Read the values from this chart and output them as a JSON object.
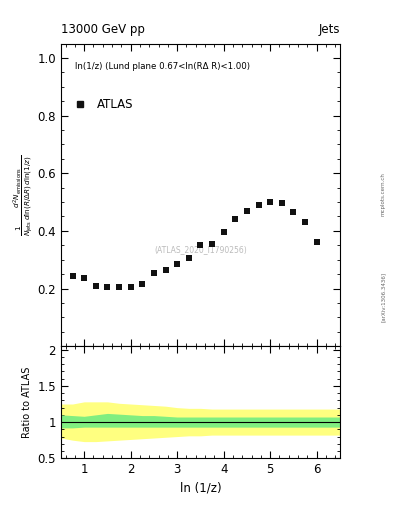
{
  "title_left": "13000 GeV pp",
  "title_right": "Jets",
  "annotation": "ln(1/z) (Lund plane 0.67<ln(RΔ R)<1.00)",
  "atlas_label": "ATLAS",
  "watermark": "(ATLAS_2020_I1790256)",
  "ylabel_ratio": "Ratio to ATLAS",
  "xlabel": "ln (1/z)",
  "xlim": [
    0.5,
    6.5
  ],
  "ylim_main": [
    0.0,
    1.05
  ],
  "ylim_ratio": [
    0.5,
    2.05
  ],
  "yticks_main": [
    0.2,
    0.4,
    0.6,
    0.8,
    1.0
  ],
  "yticks_ratio": [
    0.5,
    1.0,
    1.5,
    2.0
  ],
  "xticks": [
    1,
    2,
    3,
    4,
    5,
    6
  ],
  "data_x": [
    0.75,
    1.0,
    1.25,
    1.5,
    1.75,
    2.0,
    2.25,
    2.5,
    2.75,
    3.0,
    3.25,
    3.5,
    3.75,
    4.0,
    4.25,
    4.5,
    4.75,
    5.0,
    5.25,
    5.5,
    5.75,
    6.0
  ],
  "data_y": [
    0.245,
    0.235,
    0.21,
    0.205,
    0.205,
    0.205,
    0.215,
    0.255,
    0.265,
    0.285,
    0.305,
    0.35,
    0.355,
    0.395,
    0.44,
    0.47,
    0.49,
    0.5,
    0.495,
    0.465,
    0.43,
    0.36
  ],
  "marker_color": "#111111",
  "marker_size": 4.5,
  "ratio_x": [
    0.5,
    0.75,
    1.0,
    1.25,
    1.5,
    1.75,
    2.0,
    2.25,
    2.5,
    2.75,
    3.0,
    3.25,
    3.5,
    3.75,
    4.0,
    4.25,
    4.5,
    4.75,
    5.0,
    5.25,
    5.5,
    5.75,
    6.0,
    6.5
  ],
  "ratio_green_upper": [
    1.1,
    1.09,
    1.08,
    1.1,
    1.12,
    1.11,
    1.1,
    1.09,
    1.09,
    1.08,
    1.07,
    1.07,
    1.07,
    1.07,
    1.07,
    1.07,
    1.07,
    1.07,
    1.07,
    1.07,
    1.07,
    1.07,
    1.07,
    1.07
  ],
  "ratio_green_lower": [
    0.92,
    0.92,
    0.93,
    0.93,
    0.93,
    0.93,
    0.93,
    0.93,
    0.93,
    0.93,
    0.93,
    0.93,
    0.93,
    0.93,
    0.93,
    0.93,
    0.93,
    0.93,
    0.93,
    0.93,
    0.93,
    0.93,
    0.93,
    0.93
  ],
  "ratio_yellow_upper": [
    1.25,
    1.25,
    1.28,
    1.28,
    1.28,
    1.26,
    1.25,
    1.24,
    1.23,
    1.22,
    1.2,
    1.19,
    1.19,
    1.18,
    1.18,
    1.18,
    1.18,
    1.18,
    1.18,
    1.18,
    1.18,
    1.18,
    1.18,
    1.18
  ],
  "ratio_yellow_lower": [
    0.78,
    0.75,
    0.73,
    0.73,
    0.74,
    0.75,
    0.76,
    0.77,
    0.78,
    0.79,
    0.8,
    0.81,
    0.81,
    0.82,
    0.82,
    0.82,
    0.82,
    0.82,
    0.82,
    0.82,
    0.82,
    0.82,
    0.82,
    0.82
  ],
  "green_color": "#80ee80",
  "yellow_color": "#ffff80",
  "ratio_line_y": 1.0,
  "right_label_text": "[arXiv:1306.3436]",
  "mcplots_text": "mcplots.cern.ch"
}
